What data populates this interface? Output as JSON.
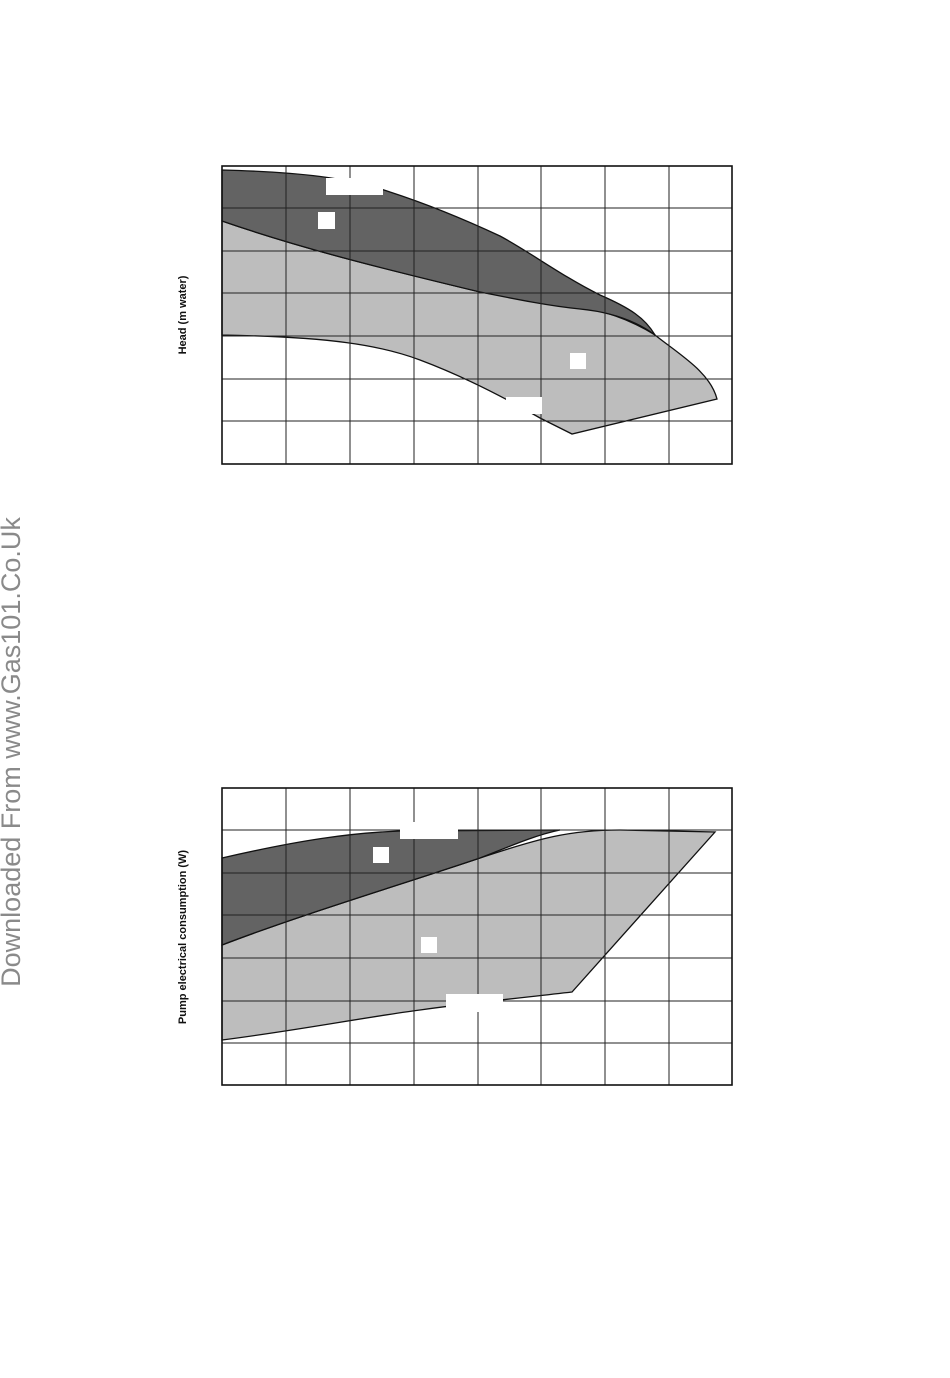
{
  "watermark": "Downloaded From www.Gas101.Co.Uk",
  "charts": [
    {
      "y_label": "Head (m water)"
    },
    {
      "y_label": "Pump electrical consumption (W)"
    }
  ]
}
